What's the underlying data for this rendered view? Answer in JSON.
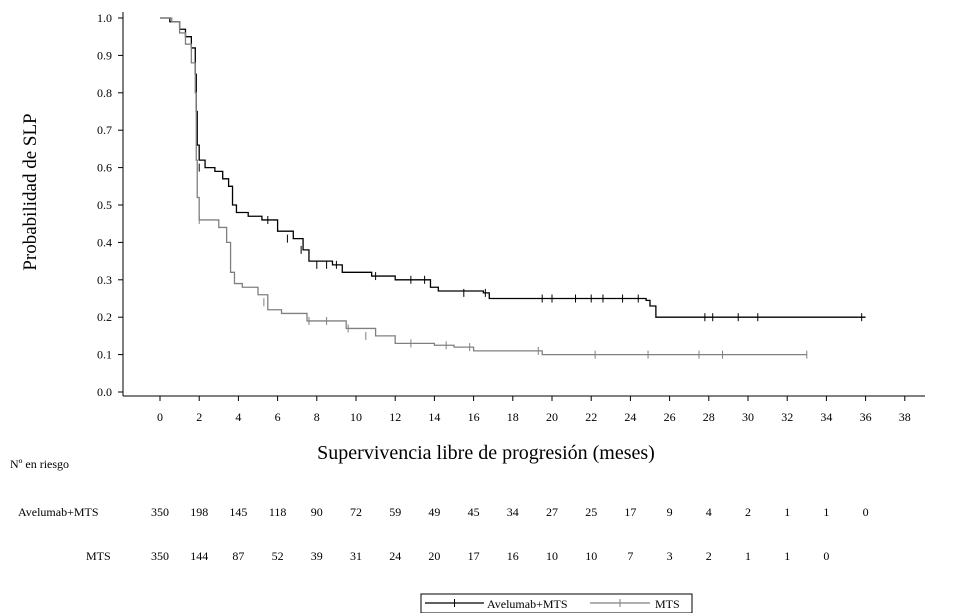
{
  "chart_data": {
    "type": "line",
    "xlabel": "Supervivencia libre de progresión (meses)",
    "ylabel": "Probabilidad de SLP",
    "xlim": [
      0,
      38
    ],
    "ylim": [
      0.0,
      1.0
    ],
    "x_ticks": [
      0,
      2,
      4,
      6,
      8,
      10,
      12,
      14,
      16,
      18,
      20,
      22,
      24,
      26,
      28,
      30,
      32,
      34,
      36,
      38
    ],
    "y_ticks": [
      "0.0",
      "0.1",
      "0.2",
      "0.3",
      "0.4",
      "0.5",
      "0.6",
      "0.7",
      "0.8",
      "0.9",
      "1.0"
    ],
    "y_tick_values": [
      0.0,
      0.1,
      0.2,
      0.3,
      0.4,
      0.5,
      0.6,
      0.7,
      0.8,
      0.9,
      1.0
    ],
    "grid": false,
    "legend_placement": "bottom-center",
    "series": [
      {
        "name": "Avelumab+MTS",
        "color": "#000000",
        "x": [
          0,
          0.5,
          1.0,
          1.3,
          1.6,
          1.8,
          1.85,
          1.9,
          2.0,
          2.3,
          2.8,
          3.2,
          3.5,
          3.7,
          3.9,
          4.5,
          5.2,
          6.0,
          6.8,
          7.3,
          7.6,
          8.8,
          9.3,
          10.8,
          12.0,
          13.8,
          14.2,
          16.5,
          16.8,
          24.8,
          25.0,
          25.3,
          26.0,
          36.0
        ],
        "y": [
          1.0,
          0.99,
          0.97,
          0.95,
          0.92,
          0.85,
          0.75,
          0.66,
          0.62,
          0.6,
          0.59,
          0.57,
          0.55,
          0.5,
          0.48,
          0.47,
          0.46,
          0.43,
          0.41,
          0.38,
          0.35,
          0.34,
          0.32,
          0.31,
          0.3,
          0.28,
          0.27,
          0.265,
          0.25,
          0.245,
          0.23,
          0.2,
          0.2,
          0.2
        ],
        "censor_x": [
          2.0,
          5.5,
          6.5,
          7.2,
          8.0,
          8.5,
          9.0,
          11.0,
          12.8,
          13.5,
          15.5,
          16.6,
          19.5,
          20.0,
          21.2,
          22.0,
          22.6,
          23.6,
          24.4,
          27.8,
          28.2,
          29.5,
          30.5,
          35.8
        ],
        "censor_y": [
          0.6,
          0.46,
          0.41,
          0.38,
          0.34,
          0.34,
          0.34,
          0.31,
          0.3,
          0.3,
          0.265,
          0.265,
          0.25,
          0.25,
          0.25,
          0.25,
          0.25,
          0.25,
          0.25,
          0.2,
          0.2,
          0.2,
          0.2,
          0.2
        ]
      },
      {
        "name": "MTS",
        "color": "#808080",
        "x": [
          0,
          0.6,
          1.0,
          1.3,
          1.6,
          1.8,
          1.85,
          1.9,
          2.0,
          3.0,
          3.4,
          3.6,
          3.8,
          4.2,
          5.0,
          5.5,
          6.2,
          7.5,
          9.5,
          11.0,
          12.0,
          14.0,
          15.0,
          16.0,
          19.0,
          19.5,
          33.0
        ],
        "y": [
          1.0,
          0.99,
          0.96,
          0.93,
          0.88,
          0.8,
          0.62,
          0.52,
          0.46,
          0.44,
          0.4,
          0.32,
          0.29,
          0.28,
          0.26,
          0.22,
          0.21,
          0.19,
          0.17,
          0.15,
          0.13,
          0.125,
          0.12,
          0.11,
          0.11,
          0.1,
          0.1
        ],
        "censor_x": [
          2.0,
          5.3,
          7.6,
          8.5,
          9.6,
          10.5,
          12.8,
          14.6,
          15.8,
          19.3,
          22.2,
          24.9,
          27.5,
          28.7,
          33.0
        ],
        "censor_y": [
          0.46,
          0.24,
          0.19,
          0.19,
          0.17,
          0.15,
          0.13,
          0.125,
          0.12,
          0.11,
          0.1,
          0.1,
          0.1,
          0.1,
          0.1
        ]
      }
    ],
    "risk_table": {
      "title": "Nº en riesgo",
      "rows": [
        {
          "label": "Avelumab+MTS",
          "values": [
            "350",
            "198",
            "145",
            "118",
            "90",
            "72",
            "59",
            "49",
            "45",
            "34",
            "27",
            "25",
            "17",
            "9",
            "4",
            "2",
            "1",
            "1",
            "0"
          ]
        },
        {
          "label": "MTS",
          "values": [
            "350",
            "144",
            "87",
            "52",
            "39",
            "31",
            "24",
            "20",
            "17",
            "16",
            "10",
            "10",
            "7",
            "3",
            "2",
            "1",
            "1",
            "0"
          ]
        }
      ]
    },
    "legend": [
      "Avelumab+MTS",
      "MTS"
    ]
  }
}
